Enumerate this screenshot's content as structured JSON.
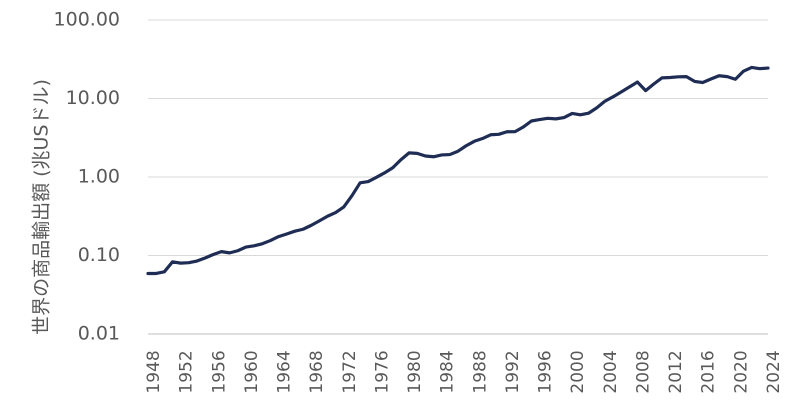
{
  "chart_data": {
    "type": "line",
    "ylabel": "世界の商品輸出額 (兆USドル)",
    "yscale": "log",
    "ylim": [
      0.01,
      100
    ],
    "yticks": [
      0.01,
      0.1,
      1,
      10,
      100
    ],
    "ytick_labels": [
      "0.01",
      "0.10",
      "1.00",
      "10.00",
      "100.00"
    ],
    "xlim": [
      1948,
      2024
    ],
    "xticks": [
      1948,
      1952,
      1956,
      1960,
      1964,
      1968,
      1972,
      1976,
      1980,
      1984,
      1988,
      1992,
      1996,
      2000,
      2004,
      2008,
      2012,
      2016,
      2020,
      2024
    ],
    "grid": "horizontal",
    "series": [
      {
        "color": "#1f2d55",
        "x": [
          1948,
          1949,
          1950,
          1951,
          1952,
          1953,
          1954,
          1955,
          1956,
          1957,
          1958,
          1959,
          1960,
          1961,
          1962,
          1963,
          1964,
          1965,
          1966,
          1967,
          1968,
          1969,
          1970,
          1971,
          1972,
          1973,
          1974,
          1975,
          1976,
          1977,
          1978,
          1979,
          1980,
          1981,
          1982,
          1983,
          1984,
          1985,
          1986,
          1987,
          1988,
          1989,
          1990,
          1991,
          1992,
          1993,
          1994,
          1995,
          1996,
          1997,
          1998,
          1999,
          2000,
          2001,
          2002,
          2003,
          2004,
          2005,
          2006,
          2007,
          2008,
          2009,
          2010,
          2011,
          2012,
          2013,
          2014,
          2015,
          2016,
          2017,
          2018,
          2019,
          2020,
          2021,
          2022,
          2023,
          2024
        ],
        "y": [
          0.059,
          0.059,
          0.062,
          0.083,
          0.08,
          0.081,
          0.085,
          0.093,
          0.103,
          0.112,
          0.108,
          0.115,
          0.128,
          0.133,
          0.141,
          0.155,
          0.174,
          0.188,
          0.204,
          0.216,
          0.242,
          0.276,
          0.316,
          0.352,
          0.416,
          0.578,
          0.843,
          0.875,
          0.991,
          1.13,
          1.31,
          1.66,
          2.03,
          2.0,
          1.85,
          1.81,
          1.91,
          1.93,
          2.13,
          2.5,
          2.85,
          3.09,
          3.45,
          3.5,
          3.77,
          3.78,
          4.33,
          5.17,
          5.39,
          5.59,
          5.5,
          5.71,
          6.45,
          6.19,
          6.49,
          7.59,
          9.22,
          10.5,
          12.1,
          14.0,
          16.2,
          12.6,
          15.3,
          18.3,
          18.5,
          18.9,
          19.0,
          16.5,
          16.0,
          17.7,
          19.5,
          19.0,
          17.6,
          22.3,
          24.9,
          24.0,
          24.4
        ]
      }
    ]
  }
}
